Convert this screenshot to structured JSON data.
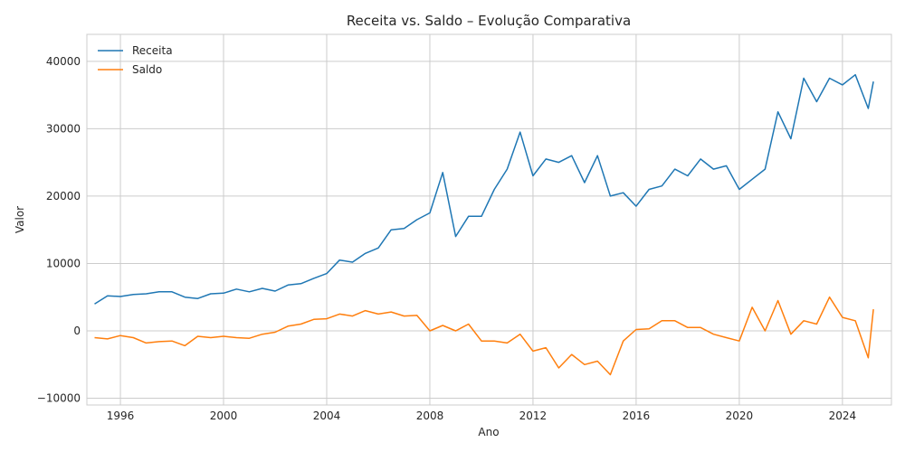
{
  "chart_data": {
    "type": "line",
    "title": "Receita vs. Saldo – Evolução Comparativa",
    "xlabel": "Ano",
    "ylabel": "Valor",
    "xlim": [
      1994.7,
      2025.9
    ],
    "ylim": [
      -11000,
      44000
    ],
    "x_ticks": [
      1996,
      2000,
      2004,
      2008,
      2012,
      2016,
      2020,
      2024
    ],
    "x_tick_labels": [
      "1996",
      "2000",
      "2004",
      "2008",
      "2012",
      "2016",
      "2020",
      "2024"
    ],
    "y_ticks": [
      -10000,
      0,
      10000,
      20000,
      30000,
      40000
    ],
    "y_tick_labels": [
      "−10000",
      "0",
      "10000",
      "20000",
      "30000",
      "40000"
    ],
    "grid": true,
    "legend_position": "top-left",
    "series": [
      {
        "name": "Receita",
        "color": "#1f77b4",
        "points": [
          [
            1995.0,
            4000
          ],
          [
            1995.5,
            5200
          ],
          [
            1996.0,
            5100
          ],
          [
            1996.5,
            5400
          ],
          [
            1997.0,
            5500
          ],
          [
            1997.5,
            5800
          ],
          [
            1998.0,
            5800
          ],
          [
            1998.5,
            5000
          ],
          [
            1999.0,
            4800
          ],
          [
            1999.5,
            5500
          ],
          [
            2000.0,
            5600
          ],
          [
            2000.5,
            6200
          ],
          [
            2001.0,
            5800
          ],
          [
            2001.5,
            6300
          ],
          [
            2002.0,
            5900
          ],
          [
            2002.5,
            6800
          ],
          [
            2003.0,
            7000
          ],
          [
            2003.5,
            7800
          ],
          [
            2004.0,
            8500
          ],
          [
            2004.5,
            10500
          ],
          [
            2005.0,
            10200
          ],
          [
            2005.5,
            11500
          ],
          [
            2006.0,
            12300
          ],
          [
            2006.5,
            15000
          ],
          [
            2007.0,
            15200
          ],
          [
            2007.5,
            16500
          ],
          [
            2008.0,
            17500
          ],
          [
            2008.5,
            23500
          ],
          [
            2009.0,
            14000
          ],
          [
            2009.5,
            17000
          ],
          [
            2010.0,
            17000
          ],
          [
            2010.5,
            21000
          ],
          [
            2011.0,
            24000
          ],
          [
            2011.5,
            29500
          ],
          [
            2012.0,
            23000
          ],
          [
            2012.5,
            25500
          ],
          [
            2013.0,
            25000
          ],
          [
            2013.5,
            26000
          ],
          [
            2014.0,
            22000
          ],
          [
            2014.5,
            26000
          ],
          [
            2015.0,
            20000
          ],
          [
            2015.5,
            20500
          ],
          [
            2016.0,
            18500
          ],
          [
            2016.5,
            21000
          ],
          [
            2017.0,
            21500
          ],
          [
            2017.5,
            24000
          ],
          [
            2018.0,
            23000
          ],
          [
            2018.5,
            25500
          ],
          [
            2019.0,
            24000
          ],
          [
            2019.5,
            24500
          ],
          [
            2020.0,
            21000
          ],
          [
            2020.5,
            22500
          ],
          [
            2021.0,
            24000
          ],
          [
            2021.5,
            32500
          ],
          [
            2022.0,
            28500
          ],
          [
            2022.5,
            37500
          ],
          [
            2023.0,
            34000
          ],
          [
            2023.5,
            37500
          ],
          [
            2024.0,
            36500
          ],
          [
            2024.5,
            38000
          ],
          [
            2025.0,
            33000
          ],
          [
            2025.2,
            37000
          ]
        ]
      },
      {
        "name": "Saldo",
        "color": "#ff7f0e",
        "points": [
          [
            1995.0,
            -1000
          ],
          [
            1995.5,
            -1200
          ],
          [
            1996.0,
            -700
          ],
          [
            1996.5,
            -1000
          ],
          [
            1997.0,
            -1800
          ],
          [
            1997.5,
            -1600
          ],
          [
            1998.0,
            -1500
          ],
          [
            1998.5,
            -2200
          ],
          [
            1999.0,
            -800
          ],
          [
            1999.5,
            -1000
          ],
          [
            2000.0,
            -800
          ],
          [
            2000.5,
            -1000
          ],
          [
            2001.0,
            -1100
          ],
          [
            2001.5,
            -500
          ],
          [
            2002.0,
            -200
          ],
          [
            2002.5,
            700
          ],
          [
            2003.0,
            1000
          ],
          [
            2003.5,
            1700
          ],
          [
            2004.0,
            1800
          ],
          [
            2004.5,
            2500
          ],
          [
            2005.0,
            2200
          ],
          [
            2005.5,
            3000
          ],
          [
            2006.0,
            2500
          ],
          [
            2006.5,
            2800
          ],
          [
            2007.0,
            2200
          ],
          [
            2007.5,
            2300
          ],
          [
            2008.0,
            0
          ],
          [
            2008.5,
            800
          ],
          [
            2009.0,
            0
          ],
          [
            2009.5,
            1000
          ],
          [
            2010.0,
            -1500
          ],
          [
            2010.5,
            -1500
          ],
          [
            2011.0,
            -1800
          ],
          [
            2011.5,
            -500
          ],
          [
            2012.0,
            -3000
          ],
          [
            2012.5,
            -2500
          ],
          [
            2013.0,
            -5500
          ],
          [
            2013.5,
            -3500
          ],
          [
            2014.0,
            -5000
          ],
          [
            2014.5,
            -4500
          ],
          [
            2015.0,
            -6500
          ],
          [
            2015.5,
            -1500
          ],
          [
            2016.0,
            200
          ],
          [
            2016.5,
            300
          ],
          [
            2017.0,
            1500
          ],
          [
            2017.5,
            1500
          ],
          [
            2018.0,
            500
          ],
          [
            2018.5,
            500
          ],
          [
            2019.0,
            -500
          ],
          [
            2019.5,
            -1000
          ],
          [
            2020.0,
            -1500
          ],
          [
            2020.5,
            3500
          ],
          [
            2021.0,
            0
          ],
          [
            2021.5,
            4500
          ],
          [
            2022.0,
            -500
          ],
          [
            2022.5,
            1500
          ],
          [
            2023.0,
            1000
          ],
          [
            2023.5,
            5000
          ],
          [
            2024.0,
            2000
          ],
          [
            2024.5,
            1500
          ],
          [
            2025.0,
            -4000
          ],
          [
            2025.2,
            3200
          ]
        ]
      }
    ]
  }
}
